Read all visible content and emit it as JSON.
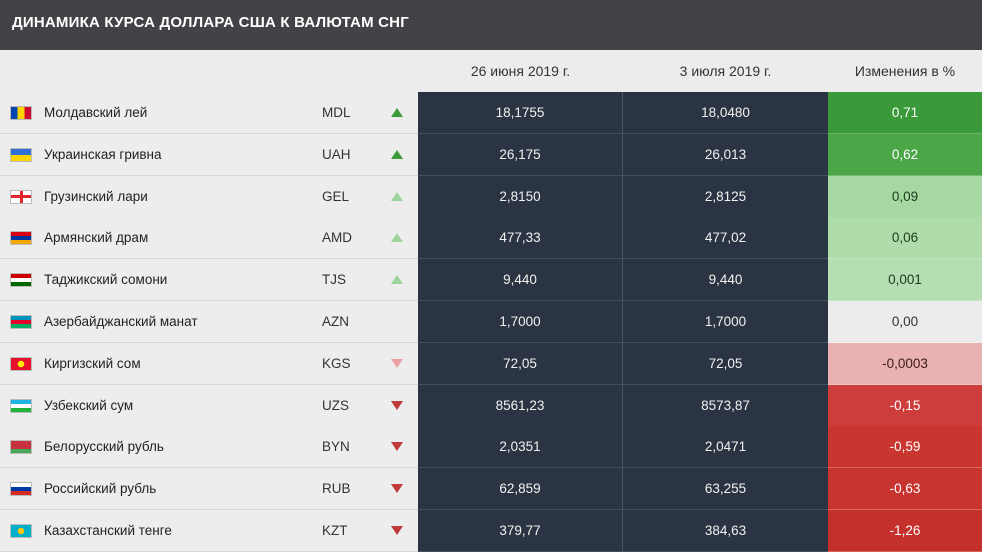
{
  "title": "ДИНАМИКА КУРСА ДОЛЛАРА США К ВАЛЮТАМ СНГ",
  "headers": {
    "date1": "26 июня 2019 г.",
    "date2": "3 июля 2019 г.",
    "change": "Изменения в %"
  },
  "chart_data": {
    "type": "table",
    "title": "ДИНАМИКА КУРСА ДОЛЛАРА США К ВАЛЮТАМ СНГ",
    "columns": [
      "",
      "",
      "26 июня 2019 г.",
      "3 июля 2019 г.",
      "Изменения в %"
    ],
    "rows": [
      {
        "name": "Молдавский лей",
        "code": "MDL",
        "trend": "up",
        "strength": "strong",
        "v1": "18,1755",
        "v2": "18,0480",
        "change": "0,71",
        "change_color": "#3a9a39",
        "change_text": "#ffffff",
        "flag_icon": "moldova-flag-icon",
        "flag_colors": [
          "#0046ae",
          "#ffd200",
          "#cc092f"
        ],
        "flag_dir": "v"
      },
      {
        "name": "Украинская гривна",
        "code": "UAH",
        "trend": "up",
        "strength": "strong",
        "v1": "26,175",
        "v2": "26,013",
        "change": "0,62",
        "change_color": "#4aa647",
        "change_text": "#ffffff",
        "flag_icon": "ukraine-flag-icon",
        "flag_colors": [
          "#2f6fd6",
          "#ffd500"
        ],
        "flag_dir": "h"
      },
      {
        "name": "Грузинский лари",
        "code": "GEL",
        "trend": "up",
        "strength": "light",
        "v1": "2,8150",
        "v2": "2,8125",
        "change": "0,09",
        "change_color": "#a6d8a2",
        "change_text": "#1d3a1c",
        "flag_icon": "georgia-flag-icon",
        "flag_colors": [
          "#ffffff",
          "#e3242b"
        ],
        "flag_dir": "cross"
      },
      {
        "name": "Армянский драм",
        "code": "AMD",
        "trend": "up",
        "strength": "light",
        "v1": "477,33",
        "v2": "477,02",
        "change": "0,06",
        "change_color": "#aedcab",
        "change_text": "#1d3a1c",
        "flag_icon": "armenia-flag-icon",
        "flag_colors": [
          "#d90012",
          "#0033a0",
          "#f2a800"
        ],
        "flag_dir": "h"
      },
      {
        "name": "Таджикский сомони",
        "code": "TJS",
        "trend": "up",
        "strength": "light",
        "v1": "9,440",
        "v2": "9,440",
        "change": "0,001",
        "change_color": "#b5dfb2",
        "change_text": "#1d3a1c",
        "flag_icon": "tajikistan-flag-icon",
        "flag_colors": [
          "#cc0000",
          "#ffffff",
          "#006600"
        ],
        "flag_dir": "h"
      },
      {
        "name": "Азербайджанский манат",
        "code": "AZN",
        "trend": "none",
        "strength": "none",
        "v1": "1,7000",
        "v2": "1,7000",
        "change": "0,00",
        "change_color": "#ececec",
        "change_text": "#333333",
        "flag_icon": "azerbaijan-flag-icon",
        "flag_colors": [
          "#0092bc",
          "#e4002b",
          "#00af66"
        ],
        "flag_dir": "h"
      },
      {
        "name": "Киргизский сом",
        "code": "KGS",
        "trend": "down",
        "strength": "light",
        "v1": "72,05",
        "v2": "72,05",
        "change": "-0,0003",
        "change_color": "#eab1b1",
        "change_text": "#3a1c1c",
        "flag_icon": "kyrgyzstan-flag-icon",
        "flag_colors": [
          "#e8112d",
          "#ffef00"
        ],
        "flag_dir": "sun"
      },
      {
        "name": "Узбекский сум",
        "code": "UZS",
        "trend": "down",
        "strength": "strong",
        "v1": "8561,23",
        "v2": "8573,87",
        "change": "-0,15",
        "change_color": "#cd3d3b",
        "change_text": "#ffffff",
        "flag_icon": "uzbekistan-flag-icon",
        "flag_colors": [
          "#1eb5e5",
          "#ffffff",
          "#1eb53a"
        ],
        "flag_dir": "h"
      },
      {
        "name": "Белорусский рубль",
        "code": "BYN",
        "trend": "down",
        "strength": "strong",
        "v1": "2,0351",
        "v2": "2,0471",
        "change": "-0,59",
        "change_color": "#c9352f",
        "change_text": "#ffffff",
        "flag_icon": "belarus-flag-icon",
        "flag_colors": [
          "#c8313e",
          "#4aa657"
        ],
        "flag_dir": "by"
      },
      {
        "name": "Российский рубль",
        "code": "RUB",
        "trend": "down",
        "strength": "strong",
        "v1": "62,859",
        "v2": "63,255",
        "change": "-0,63",
        "change_color": "#c8342f",
        "change_text": "#ffffff",
        "flag_icon": "russia-flag-icon",
        "flag_colors": [
          "#ffffff",
          "#0039a6",
          "#d52b1e"
        ],
        "flag_dir": "h"
      },
      {
        "name": "Казахстанский тенге",
        "code": "KZT",
        "trend": "down",
        "strength": "strong",
        "v1": "379,77",
        "v2": "384,63",
        "change": "-1,26",
        "change_color": "#c4302b",
        "change_text": "#ffffff",
        "flag_icon": "kazakhstan-flag-icon",
        "flag_colors": [
          "#00afca",
          "#fec50c"
        ],
        "flag_dir": "sun"
      }
    ]
  }
}
